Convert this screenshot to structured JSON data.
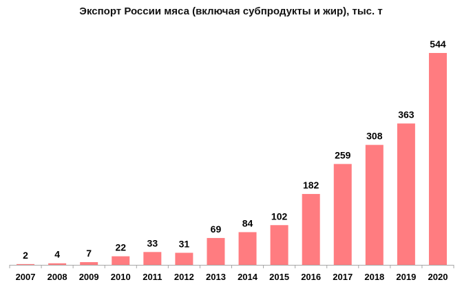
{
  "chart_data": {
    "type": "bar",
    "title": "Экспорт России мяса (включая субпродукты и жир), тыс. т",
    "xlabel": "",
    "ylabel": "",
    "categories": [
      "2007",
      "2008",
      "2009",
      "2010",
      "2011",
      "2012",
      "2013",
      "2014",
      "2015",
      "2016",
      "2017",
      "2018",
      "2019",
      "2020"
    ],
    "values": [
      2,
      4,
      7,
      22,
      33,
      31,
      69,
      84,
      102,
      182,
      259,
      308,
      363,
      544
    ],
    "ylim": [
      0,
      560
    ],
    "grid": false,
    "legend": "none",
    "bar_color": "#FF7C80",
    "axis_color": "#A6A6A6"
  }
}
